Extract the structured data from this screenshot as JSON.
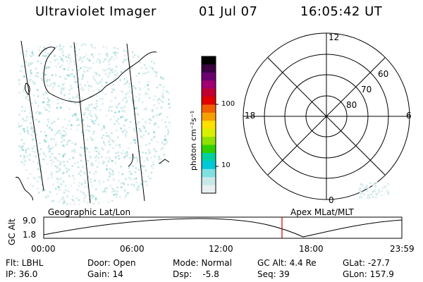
{
  "header": {
    "title": "Ultraviolet Imager",
    "date": "01 Jul 07",
    "time": "16:05:42 UT"
  },
  "colorbar": {
    "unit_label": "photon cm⁻²s⁻¹",
    "ticks": [
      "100",
      "10"
    ],
    "colors": [
      "#000000",
      "#3a0040",
      "#6a0070",
      "#a00070",
      "#c00030",
      "#e00000",
      "#f06000",
      "#f5a000",
      "#ffe000",
      "#d8f000",
      "#90e000",
      "#30d000",
      "#00d0a0",
      "#00c8d8",
      "#80e0e0",
      "#c8e8e8",
      "#e8f0f0"
    ]
  },
  "polar_plot": {
    "mlt_labels": [
      "12",
      "18",
      "6",
      "0"
    ],
    "lat_labels": [
      "60",
      "70",
      "80"
    ]
  },
  "altitude_plot": {
    "left_title": "Geographic Lat/Lon",
    "right_title": "Apex MLat/MLT",
    "y_axis_label": "GC Alt",
    "y_ticks": [
      "9.0",
      "1.8"
    ],
    "x_ticks": [
      "00:00",
      "06:00",
      "12:00",
      "18:00",
      "23:59"
    ],
    "current_marker_color": "#cc0000"
  },
  "info": {
    "filter": "Flt: LBHL",
    "ip": "IP: 36.0",
    "door": "Door: Open",
    "gain": "Gain: 14",
    "mode": "Mode: Normal",
    "dsp": "Dsp:    -5.8",
    "gc_alt": "GC Alt: 4.4 Re",
    "seq": "Seq: 39",
    "glat": "GLat: -27.7",
    "glon": "GLon: 157.9"
  }
}
